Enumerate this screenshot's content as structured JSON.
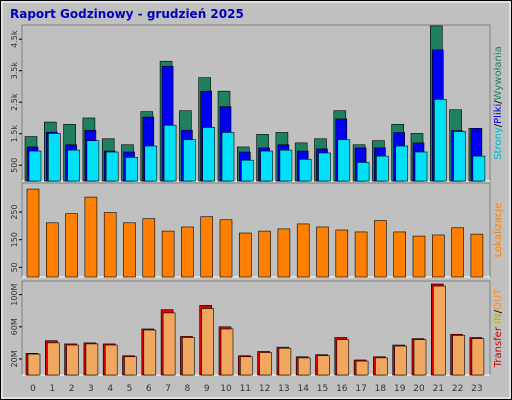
{
  "chart_data": [
    {
      "type": "bar",
      "title": "Raport Godzinowy -  grudzień 2025",
      "legend_separator": "/",
      "series": [
        {
          "name": "Wywołania",
          "color": "#1e8060",
          "values": [
            1410,
            1870,
            1800,
            2000,
            1340,
            1150,
            2200,
            3800,
            2230,
            3280,
            2850,
            1080,
            1480,
            1540,
            1210,
            1340,
            2230,
            1150,
            1280,
            1800,
            1510,
            4920,
            2260,
            1670
          ]
        },
        {
          "name": "Pliki",
          "color": "#0000f0",
          "values": [
            1080,
            1550,
            1150,
            1610,
            950,
            920,
            2030,
            3640,
            1610,
            2850,
            2360,
            920,
            1050,
            1150,
            950,
            1020,
            1970,
            1050,
            1050,
            1540,
            1210,
            4160,
            1600,
            1670
          ]
        },
        {
          "name": "Strony",
          "color": "#00e0f8",
          "values": [
            950,
            1510,
            980,
            1280,
            920,
            750,
            1110,
            1770,
            1310,
            1700,
            1540,
            660,
            950,
            980,
            690,
            890,
            1310,
            590,
            790,
            1110,
            920,
            2590,
            1570,
            790
          ]
        }
      ],
      "ylim": [
        0,
        4950
      ],
      "yticks": [
        500,
        {
          "value": 1500,
          "label": "1.5k"
        },
        {
          "value": 2500,
          "label": "2.5k"
        },
        {
          "value": 3500,
          "label": "3.5k"
        },
        {
          "value": 4500,
          "label": "4.5k"
        }
      ]
    },
    {
      "type": "bar",
      "series": [
        {
          "name": "Lokalizacje",
          "color": "#ff8000",
          "values": [
            333,
            211,
            244,
            304,
            248,
            211,
            226,
            181,
            196,
            233,
            222,
            174,
            181,
            189,
            207,
            196,
            185,
            178,
            219,
            178,
            163,
            167,
            193,
            170
          ]
        }
      ],
      "ylim": [
        15,
        355
      ],
      "yticks": [
        50,
        150,
        250
      ]
    },
    {
      "type": "bar",
      "y_label": "Transfer",
      "legend_separator": "/",
      "categories": [
        "0",
        "1",
        "2",
        "3",
        "4",
        "5",
        "6",
        "7",
        "8",
        "9",
        "10",
        "11",
        "12",
        "13",
        "14",
        "15",
        "16",
        "17",
        "18",
        "19",
        "20",
        "21",
        "22",
        "23"
      ],
      "series": [
        {
          "name": "IN",
          "color": "#e00000",
          "values": [
            27,
            42.7,
            38.7,
            40,
            38.7,
            24,
            57.3,
            81.3,
            48,
            86.7,
            60,
            24,
            29.3,
            34.7,
            22.7,
            25.3,
            46.7,
            18.7,
            22.7,
            37.3,
            45.3,
            113.3,
            50.7,
            46.7
          ]
        },
        {
          "name": "OUT",
          "color": "#f0a860",
          "values": [
            26,
            40,
            37.3,
            38.7,
            37.3,
            22.7,
            56,
            77.3,
            46.7,
            82.7,
            57.3,
            22.7,
            28,
            33.3,
            21.3,
            24,
            44,
            17.3,
            21.3,
            36,
            44,
            110.7,
            49.3,
            45.3
          ]
        }
      ],
      "ylim": [
        0,
        117
      ],
      "yticks": [
        {
          "value": 20,
          "label": "20M"
        },
        {
          "value": 60,
          "label": "60M"
        },
        {
          "value": 100,
          "label": "100M"
        }
      ]
    }
  ]
}
